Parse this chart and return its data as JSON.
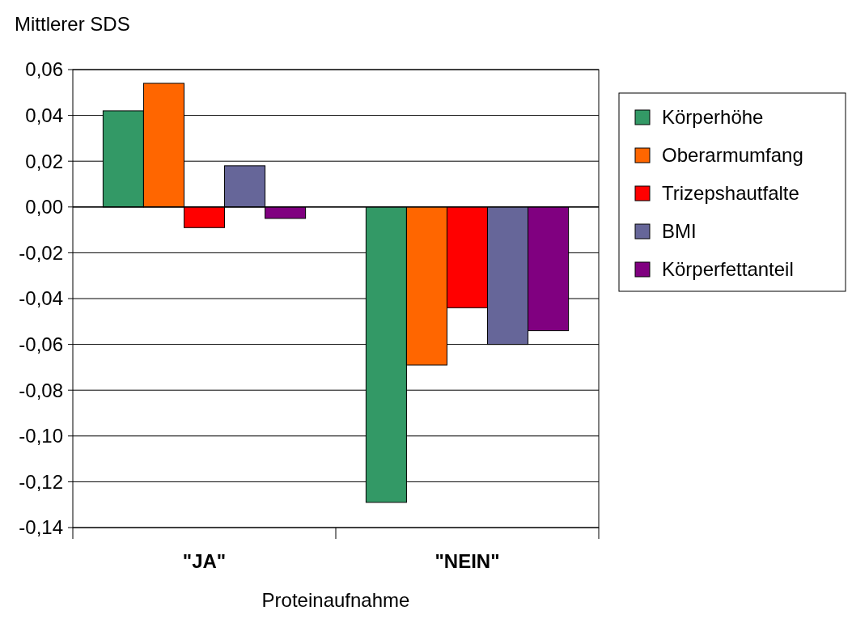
{
  "chart_data": {
    "type": "bar",
    "ylabel": "Mittlerer SDS",
    "xlabel": "Proteinaufnahme",
    "categories": [
      "\"JA\"",
      "\"NEIN\""
    ],
    "series": [
      {
        "name": "Körperhöhe",
        "color": "#339966",
        "values": [
          0.042,
          -0.129
        ]
      },
      {
        "name": "Oberarmumfang",
        "color": "#ff6600",
        "values": [
          0.054,
          -0.069
        ]
      },
      {
        "name": "Trizepshautfalte",
        "color": "#ff0000",
        "values": [
          -0.009,
          -0.044
        ]
      },
      {
        "name": "BMI",
        "color": "#666699",
        "values": [
          0.018,
          -0.06
        ]
      },
      {
        "name": "Körperfettanteil",
        "color": "#800080",
        "values": [
          -0.005,
          -0.054
        ]
      }
    ],
    "ylim": [
      -0.14,
      0.06
    ],
    "yticks": [
      {
        "value": -0.14,
        "label": "-0,14"
      },
      {
        "value": -0.12,
        "label": "-0,12"
      },
      {
        "value": -0.1,
        "label": "-0,10"
      },
      {
        "value": -0.08,
        "label": "-0,08"
      },
      {
        "value": -0.06,
        "label": "-0,06"
      },
      {
        "value": -0.04,
        "label": "-0,04"
      },
      {
        "value": -0.02,
        "label": "-0,02"
      },
      {
        "value": 0,
        "label": "0,00"
      },
      {
        "value": 0.02,
        "label": "0,02"
      },
      {
        "value": 0.04,
        "label": "0,04"
      },
      {
        "value": 0.06,
        "label": "0,06"
      }
    ],
    "grid": "y",
    "legend": "right"
  }
}
